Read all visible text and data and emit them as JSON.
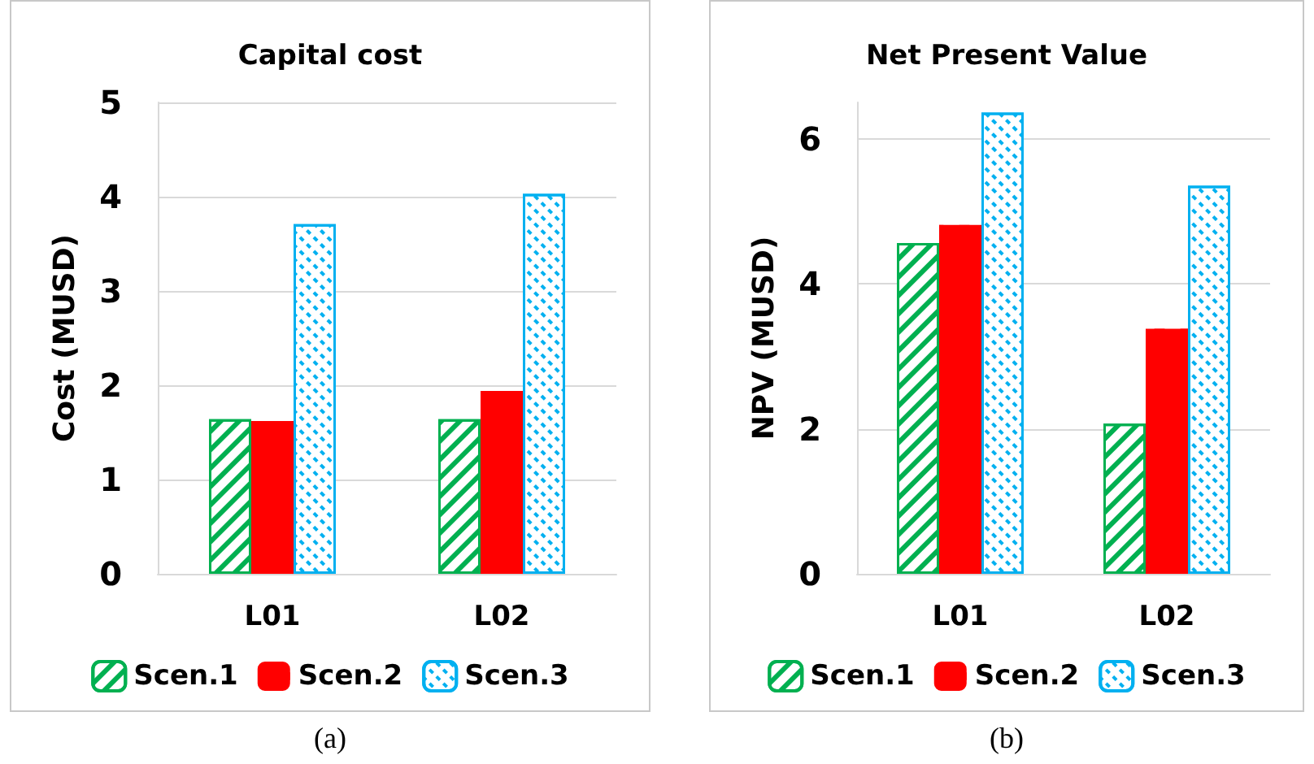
{
  "chart_data": [
    {
      "type": "bar",
      "title": "Capital cost",
      "ylabel": "Cost (MUSD)",
      "categories": [
        "L01",
        "L02"
      ],
      "series": [
        {
          "name": "Scen.1",
          "color": "#00b050",
          "values": [
            1.64,
            1.64
          ]
        },
        {
          "name": "Scen.2",
          "color": "#ff0000",
          "values": [
            1.62,
            1.94
          ]
        },
        {
          "name": "Scen.3",
          "color": "#00b0f0",
          "values": [
            3.71,
            4.03
          ]
        }
      ],
      "ylim": [
        0,
        5
      ],
      "yticks": [
        0,
        1,
        2,
        3,
        4,
        5
      ],
      "grid": "y",
      "legend": "bottom",
      "annotations": [
        "(a)"
      ]
    },
    {
      "type": "bar",
      "title": "Net Present Value",
      "ylabel": "NPV (MUSD)",
      "categories": [
        "L01",
        "L02"
      ],
      "series": [
        {
          "name": "Scen.1",
          "color": "#00b050",
          "values": [
            4.56,
            2.07
          ]
        },
        {
          "name": "Scen.2",
          "color": "#ff0000",
          "values": [
            4.81,
            3.38
          ]
        },
        {
          "name": "Scen.3",
          "color": "#00b0f0",
          "values": [
            6.36,
            5.35
          ]
        }
      ],
      "ylim": [
        0,
        6.5
      ],
      "yticks": [
        0,
        2,
        4,
        6
      ],
      "grid": "y",
      "legend": "bottom",
      "annotations": [
        "(b)"
      ]
    }
  ]
}
